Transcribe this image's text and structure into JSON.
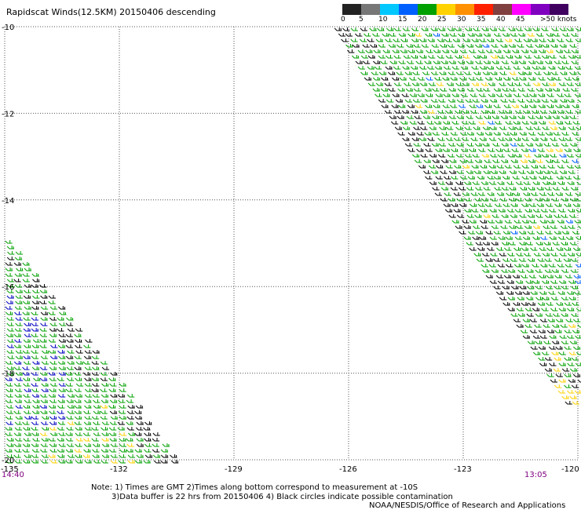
{
  "title": "Rapidscat Winds(12.5KM) 20150406 descending",
  "legend": {
    "labels": [
      "0",
      "5",
      "10",
      "15",
      "20",
      "25",
      "30",
      "35",
      "40",
      "45",
      ">50 knots"
    ],
    "colors": [
      "#222222",
      "#777777",
      "#00c8ff",
      "#0060ff",
      "#00a000",
      "#ffd200",
      "#ff9000",
      "#ff2000",
      "#804040",
      "#ff00ff",
      "#8000c0",
      "#400060"
    ]
  },
  "map": {
    "lat_labels": [
      "-10",
      "-12",
      "-14",
      "-16",
      "-18",
      "-20"
    ],
    "lon_labels": [
      "-135",
      "-132",
      "-129",
      "-126",
      "-123",
      "-120"
    ],
    "lat_range": [
      -20,
      -10
    ],
    "lon_range": [
      -135,
      -120
    ],
    "grid": true,
    "swaths": [
      {
        "name": "east",
        "time": "13:05",
        "dominant_color": "#00a000",
        "secondary_colors": [
          "#000000",
          "#ffd200",
          "#0060ff"
        ]
      },
      {
        "name": "west",
        "time": "14:40",
        "dominant_color": "#00a000",
        "secondary_colors": [
          "#0000c0",
          "#000000",
          "#ffd200"
        ]
      }
    ]
  },
  "times": {
    "left": "14:40",
    "right": "13:05"
  },
  "notes": {
    "line1": "Note: 1) Times are GMT 2)Times along bottom correspond to measurement at -10S",
    "line2": "3)Data buffer is 22 hrs from 20150406 4) Black circles indicate possible contamination",
    "line3": "NOAA/NESDIS/Office of Research and Applications"
  }
}
